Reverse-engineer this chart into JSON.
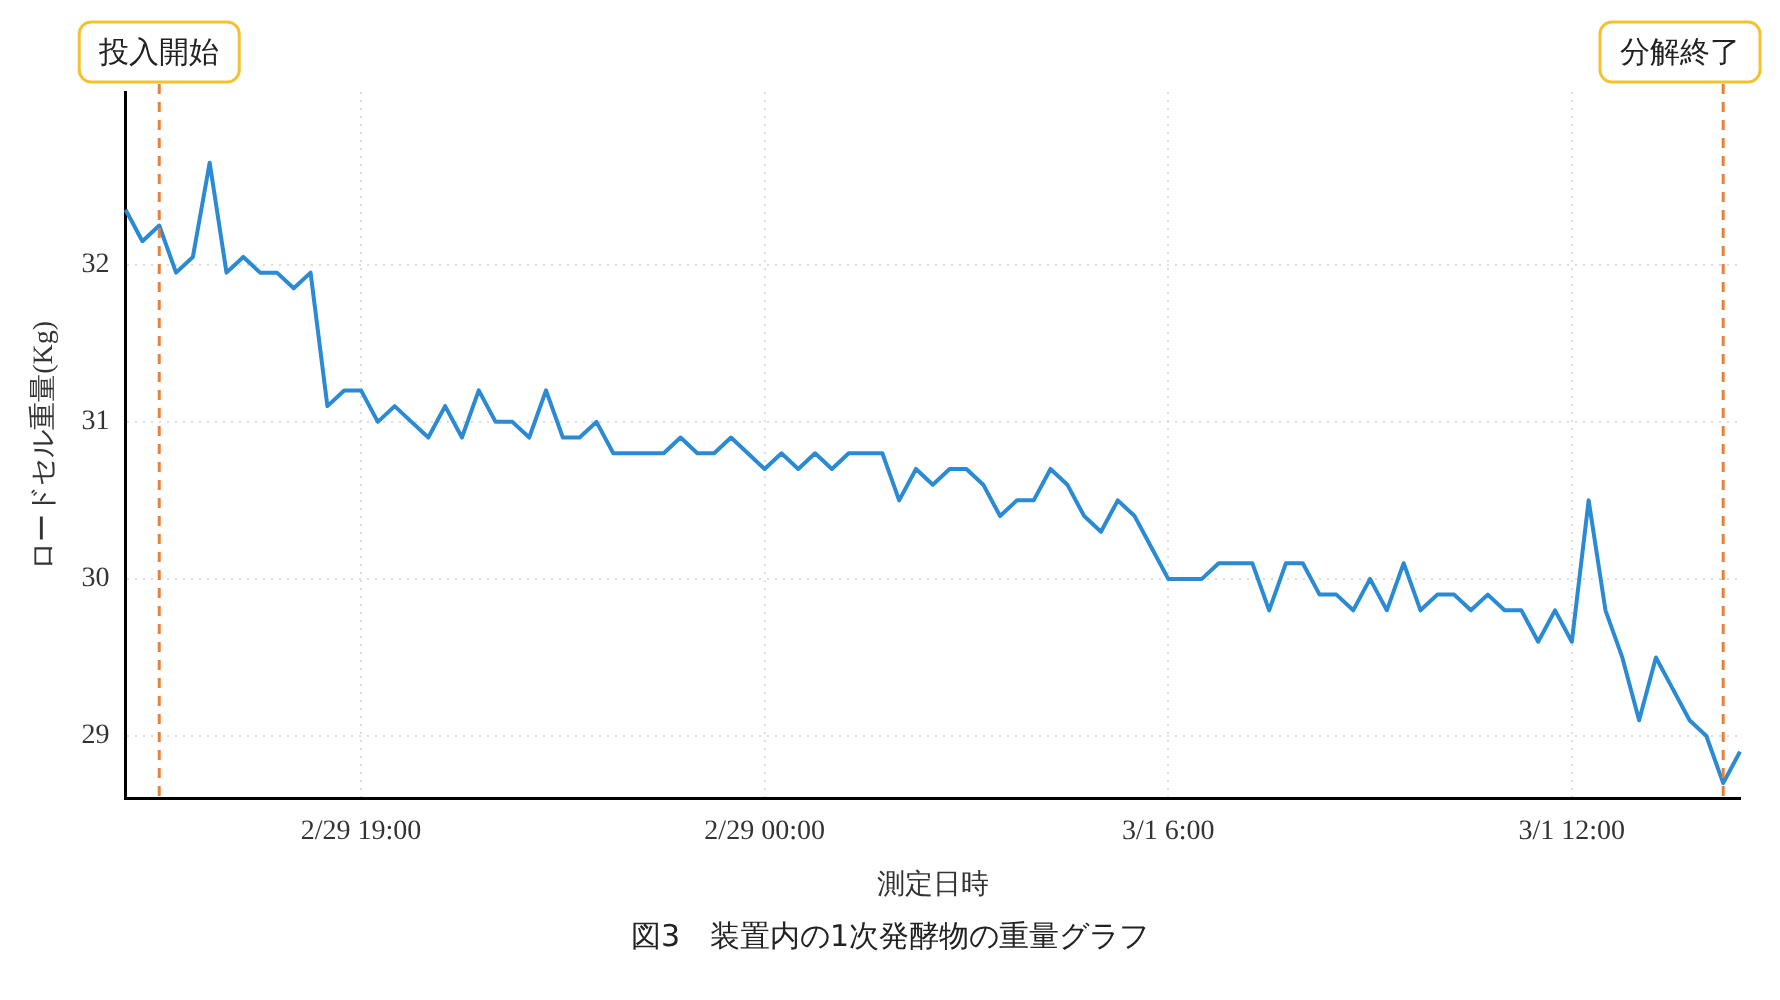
{
  "chart_data": {
    "type": "line",
    "xlabel": "測定日時",
    "ylabel": "ロードセル重量(Kg)",
    "annotations": [
      "投入開始",
      "分解終了",
      "図3　装置内の1次発酵物の重量グラフ"
    ],
    "categories": [
      null,
      null,
      null,
      null,
      null,
      null,
      null,
      null,
      null,
      null,
      null,
      null,
      null,
      null,
      "2/29 19:00",
      null,
      null,
      null,
      null,
      null,
      null,
      null,
      null,
      null,
      null,
      null,
      null,
      null,
      null,
      null,
      null,
      null,
      null,
      null,
      null,
      null,
      null,
      null,
      "2/29 00:00",
      null,
      null,
      null,
      null,
      null,
      null,
      null,
      null,
      null,
      null,
      null,
      null,
      null,
      null,
      null,
      null,
      null,
      null,
      null,
      null,
      null,
      null,
      null,
      "3/1 6:00",
      null,
      null,
      null,
      null,
      null,
      null,
      null,
      null,
      null,
      null,
      null,
      null,
      null,
      null,
      null,
      null,
      null,
      null,
      null,
      null,
      null,
      null,
      null,
      "3/1 12:00",
      null,
      null,
      null,
      null,
      null,
      null,
      null,
      null,
      null,
      null
    ],
    "series": [
      {
        "color": "#2a8ad4",
        "values": [
          32.35,
          32.15,
          32.25,
          31.95,
          32.05,
          32.65,
          31.95,
          32.05,
          31.95,
          31.95,
          31.85,
          31.95,
          31.1,
          31.2,
          31.2,
          31.0,
          31.1,
          31.0,
          30.9,
          31.1,
          30.9,
          31.2,
          31.0,
          31.0,
          30.9,
          31.2,
          30.9,
          30.9,
          31.0,
          30.8,
          30.8,
          30.8,
          30.8,
          30.9,
          30.8,
          30.8,
          30.9,
          30.8,
          30.7,
          30.8,
          30.7,
          30.8,
          30.7,
          30.8,
          30.8,
          30.8,
          30.5,
          30.7,
          30.6,
          30.7,
          30.7,
          30.6,
          30.4,
          30.5,
          30.5,
          30.7,
          30.6,
          30.4,
          30.3,
          30.5,
          30.4,
          30.2,
          30.0,
          30.0,
          30.0,
          30.1,
          30.1,
          30.1,
          29.8,
          30.1,
          30.1,
          29.9,
          29.9,
          29.8,
          30.0,
          29.8,
          30.1,
          29.8,
          29.9,
          29.9,
          29.8,
          29.9,
          29.8,
          29.8,
          29.6,
          29.8,
          29.6,
          30.5,
          29.8,
          29.5,
          29.1,
          29.5,
          29.3,
          29.1,
          29.0,
          28.7,
          28.9
        ]
      }
    ],
    "ylim": [
      28.6,
      33.1
    ],
    "yticks": [
      29,
      30,
      31,
      32
    ],
    "grid": true,
    "marker": "none",
    "line_style": "solid",
    "legend": false
  }
}
